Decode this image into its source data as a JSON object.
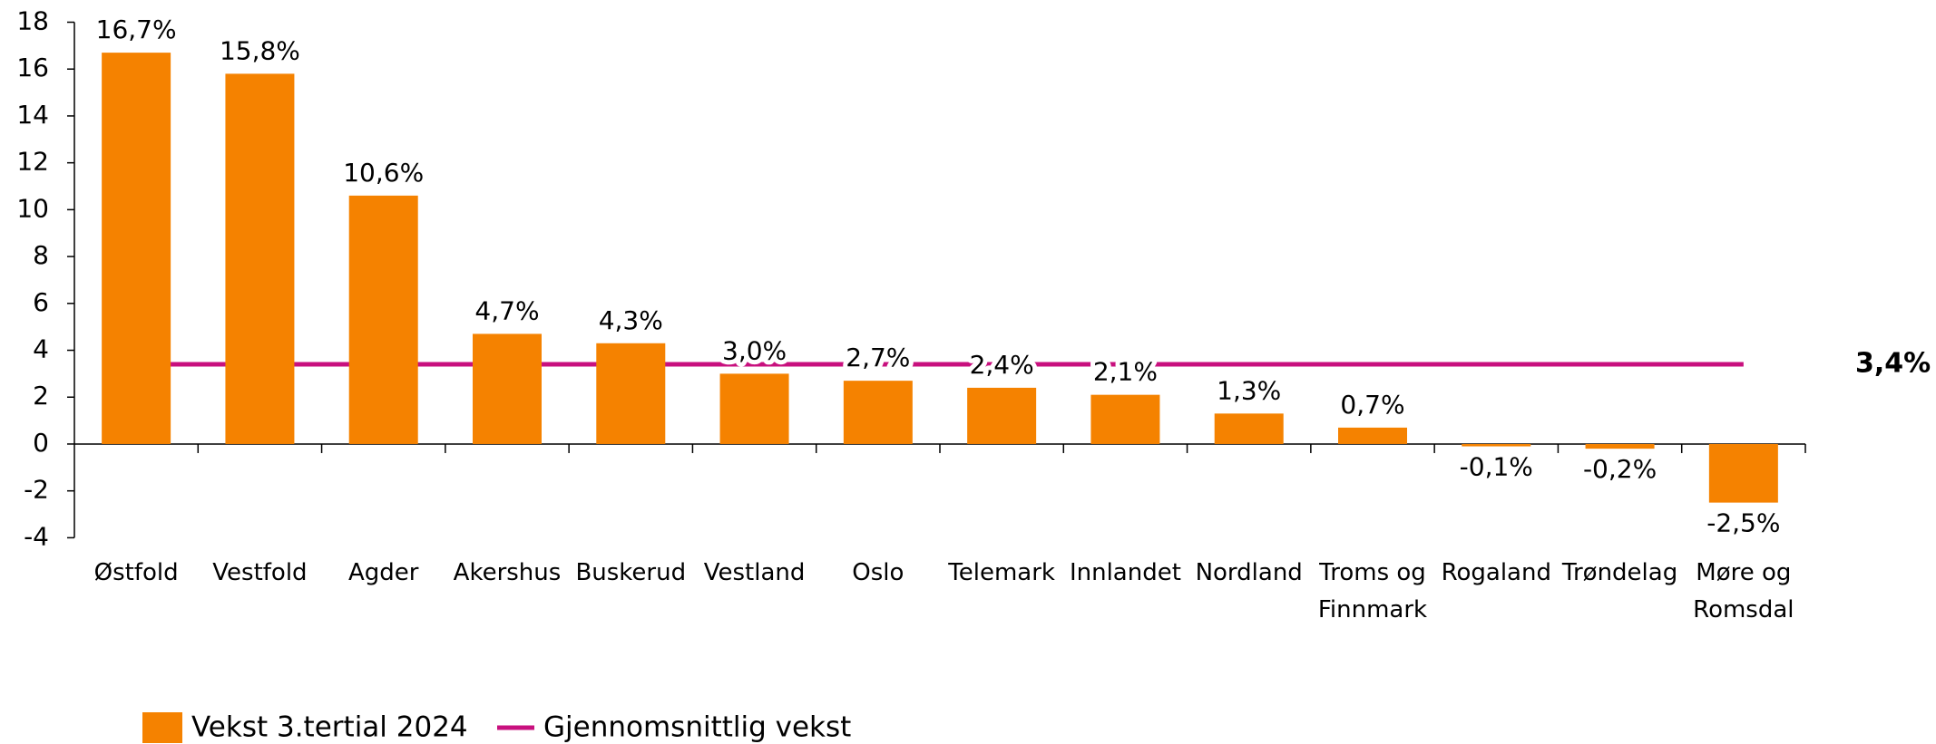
{
  "chart_data": {
    "type": "bar",
    "categories": [
      "Østfold",
      "Vestfold",
      "Agder",
      "Akershus",
      "Buskerud",
      "Vestland",
      "Oslo",
      "Telemark",
      "Innlandet",
      "Nordland",
      "Troms og Finnmark",
      "Rogaland",
      "Trøndelag",
      "Møre og Romsdal"
    ],
    "series": [
      {
        "name": "Vekst 3.tertial 2024",
        "color": "#f58200",
        "values": [
          16.7,
          15.8,
          10.6,
          4.7,
          4.3,
          3.0,
          2.7,
          2.4,
          2.1,
          1.3,
          0.7,
          -0.1,
          -0.2,
          -2.5
        ],
        "value_labels": [
          "16,7%",
          "15,8%",
          "10,6%",
          "4,7%",
          "4,3%",
          "3,0%",
          "2,7%",
          "2,4%",
          "2,1%",
          "1,3%",
          "0,7%",
          "-0,1%",
          "-0,2%",
          "-2,5%"
        ]
      },
      {
        "name": "Gjennomsnittlig vekst",
        "color": "#c8107e",
        "type": "line",
        "value": 3.4,
        "value_label": "3,4%"
      }
    ],
    "ylim": [
      -4,
      18
    ],
    "yticks": [
      -4,
      -2,
      0,
      2,
      4,
      6,
      8,
      10,
      12,
      14,
      16,
      18
    ]
  }
}
